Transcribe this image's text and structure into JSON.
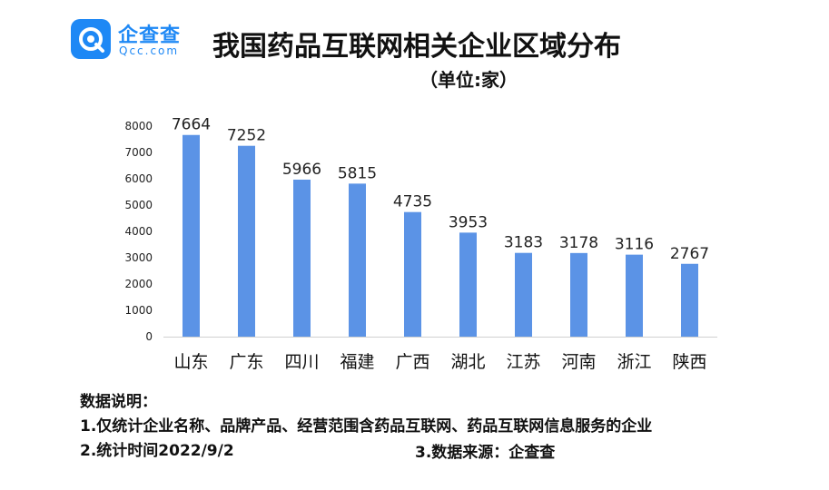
{
  "logo": {
    "name": "企查查",
    "domain": "Qcc.com",
    "icon": "magnifier-q-icon",
    "brand_color": "#1e88f5"
  },
  "title": "我国药品互联网相关企业区域分布",
  "unit": "（单位:家）",
  "notes": {
    "heading": "数据说明：",
    "line1": "1.仅统计企业名称、品牌产品、经营范围含药品互联网、药品互联网信息服务的企业",
    "line2": "2.统计时间2022/9/2",
    "line3": "3.数据来源：企查查"
  },
  "chart_data": {
    "type": "bar",
    "title": "我国药品互联网相关企业区域分布",
    "unit": "家",
    "categories": [
      "山东",
      "广东",
      "四川",
      "福建",
      "广西",
      "湖北",
      "江苏",
      "河南",
      "浙江",
      "陕西"
    ],
    "values": [
      7664,
      7252,
      5966,
      5815,
      4735,
      3953,
      3183,
      3178,
      3116,
      2767
    ],
    "ylim": [
      0,
      8000
    ],
    "yticks": [
      0,
      1000,
      2000,
      3000,
      4000,
      5000,
      6000,
      7000,
      8000
    ],
    "bar_color": "#5b93e6",
    "grid": false,
    "data_labels": true,
    "legend": "none"
  }
}
